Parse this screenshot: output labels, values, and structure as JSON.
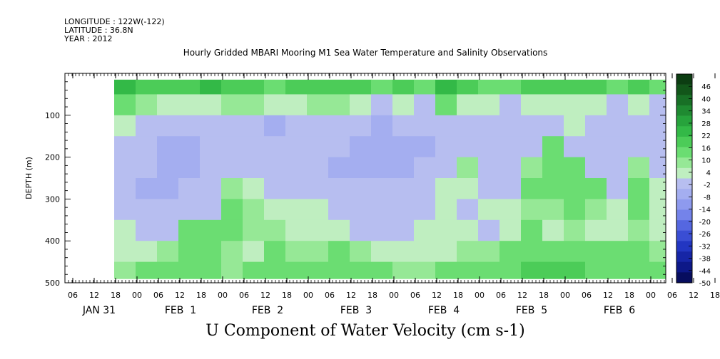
{
  "meta": {
    "longitude": "LONGITUDE : 122W(-122)",
    "latitude": "LATITUDE : 36.8N",
    "year": "YEAR : 2012"
  },
  "title": "Hourly Gridded MBARI Mooring M1 Sea Water Temperature and Salinity Observations",
  "bottom_title": "U Component of Water Velocity (cm s-1)",
  "chart_data": {
    "type": "heatmap",
    "title": "Hourly Gridded MBARI Mooring M1 Sea Water Temperature and Salinity Observations",
    "variable": "U Component of Water Velocity (cm s-1)",
    "xlabel": "",
    "ylabel": "DEPTH (m)",
    "ylim": [
      500,
      0
    ],
    "y_ticks": [
      100,
      200,
      300,
      400,
      500
    ],
    "x_hour_ticks": [
      "06",
      "12",
      "18",
      "00",
      "06",
      "12",
      "18",
      "00",
      "06",
      "12",
      "18",
      "00",
      "06",
      "12",
      "18",
      "00",
      "06",
      "12",
      "18",
      "00",
      "06",
      "12",
      "18",
      "00",
      "06",
      "12",
      "18",
      "00",
      "06",
      "12",
      "18"
    ],
    "x_day_labels": [
      "JAN 31",
      "FEB  1",
      "FEB  2",
      "FEB  3",
      "FEB  4",
      "FEB  5",
      "FEB  6"
    ],
    "colorbar": {
      "labels": [
        "46",
        "40",
        "34",
        "28",
        "22",
        "16",
        "10",
        "4",
        "-2",
        "-8",
        "-14",
        "-20",
        "-26",
        "-32",
        "-38",
        "-44",
        "-50"
      ],
      "colors": [
        "#0c3d12",
        "#12561a",
        "#187026",
        "#1f8a31",
        "#27a33c",
        "#33b947",
        "#4ccc58",
        "#6bdd72",
        "#96e896",
        "#bfeec0",
        "#b7bef0",
        "#a4aef0",
        "#8e9aee",
        "#7483ea",
        "#5567e0",
        "#3a4ed4",
        "#2236c2",
        "#1625a6",
        "#0d1888",
        "#070d5e"
      ]
    },
    "series": [
      {
        "depths_m": [
          25,
          75,
          125,
          175,
          225,
          275,
          325,
          375,
          425,
          475
        ],
        "columns": [
          {
            "time": "JAN 31 06",
            "u": [
              null,
              null,
              null,
              null,
              null,
              null,
              null,
              null,
              null,
              null
            ]
          },
          {
            "time": "JAN 31 12",
            "u": [
              18,
              6,
              -6,
              -8,
              -10,
              -10,
              -8,
              -6,
              -4,
              2
            ]
          },
          {
            "time": "JAN 31 18",
            "u": [
              14,
              4,
              -8,
              -10,
              -12,
              -14,
              -10,
              -8,
              -4,
              6
            ]
          },
          {
            "time": "FEB 1 00",
            "u": [
              12,
              -4,
              -12,
              -16,
              -16,
              -14,
              -12,
              -8,
              4,
              8
            ]
          },
          {
            "time": "FEB 1 06",
            "u": [
              16,
              -6,
              -12,
              -14,
              -14,
              -12,
              -10,
              6,
              8,
              8
            ]
          },
          {
            "time": "FEB 1 12",
            "u": [
              18,
              -2,
              -10,
              -12,
              -12,
              -12,
              -8,
              6,
              8,
              6
            ]
          },
          {
            "time": "FEB 1 18",
            "u": [
              14,
              2,
              -8,
              -10,
              -8,
              4,
              8,
              6,
              4,
              4
            ]
          },
          {
            "time": "FEB 2 00",
            "u": [
              16,
              4,
              -10,
              -12,
              -10,
              -6,
              4,
              4,
              -4,
              6
            ]
          },
          {
            "time": "FEB 2 06",
            "u": [
              10,
              -6,
              -14,
              -12,
              -10,
              -8,
              -6,
              2,
              6,
              10
            ]
          },
          {
            "time": "FEB 2 12",
            "u": [
              14,
              -4,
              -10,
              -10,
              -10,
              -8,
              -6,
              -6,
              2,
              8
            ]
          },
          {
            "time": "FEB 2 18",
            "u": [
              12,
              2,
              -8,
              -10,
              -12,
              -10,
              -6,
              -4,
              4,
              8
            ]
          },
          {
            "time": "FEB 3 00",
            "u": [
              16,
              4,
              -10,
              -12,
              -14,
              -12,
              -8,
              -4,
              6,
              8
            ]
          },
          {
            "time": "FEB 3 06",
            "u": [
              12,
              -4,
              -12,
              -14,
              -14,
              -12,
              -10,
              -8,
              4,
              8
            ]
          },
          {
            "time": "FEB 3 12",
            "u": [
              8,
              -8,
              -14,
              -16,
              -14,
              -12,
              -10,
              -8,
              -6,
              6
            ]
          },
          {
            "time": "FEB 3 18",
            "u": [
              14,
              -6,
              -12,
              -14,
              -14,
              -12,
              -10,
              -8,
              -4,
              4
            ]
          },
          {
            "time": "FEB 4 00",
            "u": [
              10,
              -8,
              -12,
              -14,
              -12,
              -10,
              -8,
              -6,
              -4,
              4
            ]
          },
          {
            "time": "FEB 4 06",
            "u": [
              18,
              6,
              -8,
              -10,
              -8,
              -6,
              -4,
              -6,
              -4,
              8
            ]
          },
          {
            "time": "FEB 4 12",
            "u": [
              12,
              -4,
              -10,
              -8,
              4,
              -6,
              -8,
              -6,
              4,
              10
            ]
          },
          {
            "time": "FEB 4 18",
            "u": [
              10,
              -6,
              -12,
              -12,
              -10,
              -8,
              -6,
              -8,
              4,
              8
            ]
          },
          {
            "time": "FEB 5 00",
            "u": [
              8,
              -8,
              -12,
              -12,
              -10,
              -8,
              -6,
              -4,
              8,
              10
            ]
          },
          {
            "time": "FEB 5 06",
            "u": [
              14,
              -6,
              -10,
              -8,
              4,
              6,
              4,
              6,
              10,
              12
            ]
          },
          {
            "time": "FEB 5 12",
            "u": [
              12,
              -4,
              -8,
              6,
              8,
              6,
              4,
              -4,
              8,
              12
            ]
          },
          {
            "time": "FEB 5 18",
            "u": [
              16,
              -2,
              -6,
              -8,
              6,
              8,
              6,
              4,
              8,
              14
            ]
          },
          {
            "time": "FEB 6 00",
            "u": [
              12,
              -6,
              -12,
              -10,
              -8,
              6,
              4,
              -6,
              6,
              10
            ]
          },
          {
            "time": "FEB 6 06",
            "u": [
              10,
              -8,
              -12,
              -10,
              -8,
              -8,
              -6,
              -4,
              6,
              10
            ]
          },
          {
            "time": "FEB 6 12",
            "u": [
              14,
              -6,
              -10,
              -8,
              4,
              8,
              6,
              4,
              8,
              10
            ]
          },
          {
            "time": "FEB 6 18",
            "u": [
              8,
              -8,
              -12,
              -10,
              -8,
              -6,
              -6,
              -6,
              4,
              6
            ]
          }
        ]
      }
    ]
  }
}
